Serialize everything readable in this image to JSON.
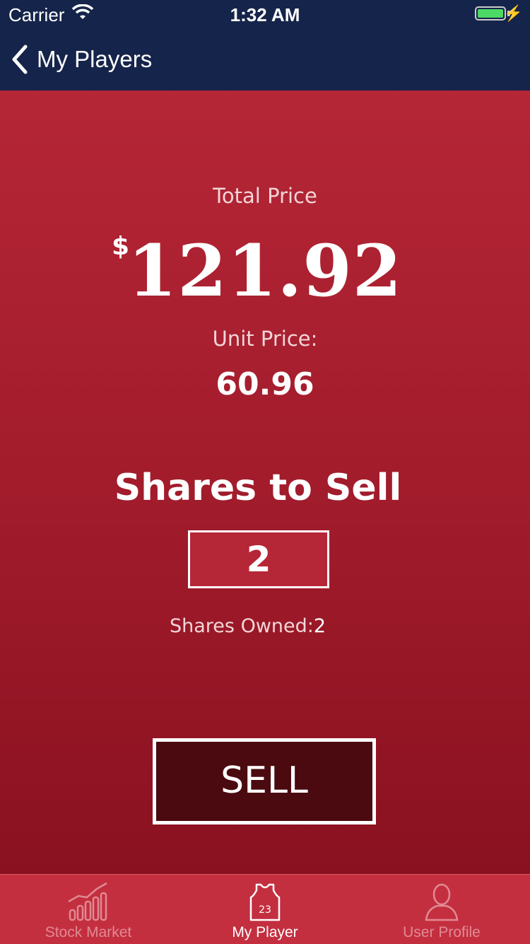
{
  "status_bar": {
    "carrier": "Carrier",
    "time": "1:32 AM",
    "battery_color": "#4cd964"
  },
  "nav": {
    "back_label": "My Players",
    "back_icon": "chevron-left-icon"
  },
  "trade": {
    "total_label": "Total Price",
    "currency_symbol": "$",
    "total_value": "121.92",
    "unit_label": "Unit Price:",
    "unit_value": "60.96",
    "shares_title": "Shares to Sell",
    "shares_to_sell": "2",
    "owned_label": "Shares Owned:",
    "owned_value": "2",
    "sell_label": "SELL"
  },
  "tabs": [
    {
      "label": "Stock Market",
      "icon": "bar-chart-icon",
      "active": false
    },
    {
      "label": "My Player",
      "icon": "jersey-icon",
      "active": true
    },
    {
      "label": "User Profile",
      "icon": "user-icon",
      "active": false
    }
  ],
  "colors": {
    "nav_background": "#15244a",
    "accent_red": "#b52636",
    "sell_button": "#4a0a10",
    "tab_bar": "#c42f40"
  }
}
